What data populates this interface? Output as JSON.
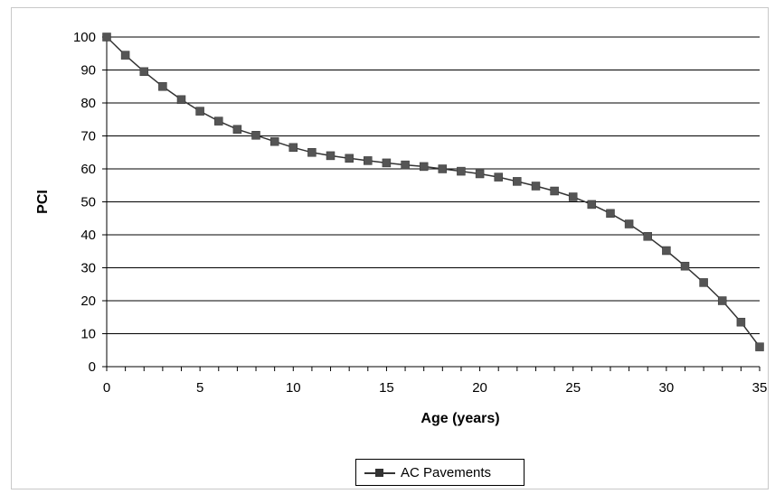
{
  "chart_data": {
    "type": "line",
    "xlabel": "Age (years)",
    "ylabel": "PCI",
    "xlim": [
      0,
      35
    ],
    "ylim": [
      0,
      100
    ],
    "xticks": [
      "0",
      "5",
      "10",
      "15",
      "20",
      "25",
      "30",
      "35"
    ],
    "yticks": [
      "0",
      "10",
      "20",
      "30",
      "40",
      "50",
      "60",
      "70",
      "80",
      "90",
      "100"
    ],
    "grid": "horizontal",
    "legend_position": "bottom",
    "series": [
      {
        "name": "AC Pavements",
        "color": "#333333",
        "marker": "square",
        "x": [
          0,
          1,
          2,
          3,
          4,
          5,
          6,
          7,
          8,
          9,
          10,
          11,
          12,
          13,
          14,
          15,
          16,
          17,
          18,
          19,
          20,
          21,
          22,
          23,
          24,
          25,
          26,
          27,
          28,
          29,
          30,
          31,
          32,
          33,
          34,
          35
        ],
        "y": [
          100,
          94.5,
          89.5,
          85,
          81,
          77.5,
          74.5,
          72,
          70.2,
          68.3,
          66.5,
          65,
          64,
          63.2,
          62.5,
          61.8,
          61.2,
          60.7,
          60,
          59.3,
          58.5,
          57.5,
          56.2,
          54.8,
          53.3,
          51.5,
          49.2,
          46.5,
          43.3,
          39.5,
          35.2,
          30.5,
          25.5,
          20,
          13.5,
          6
        ]
      }
    ]
  }
}
